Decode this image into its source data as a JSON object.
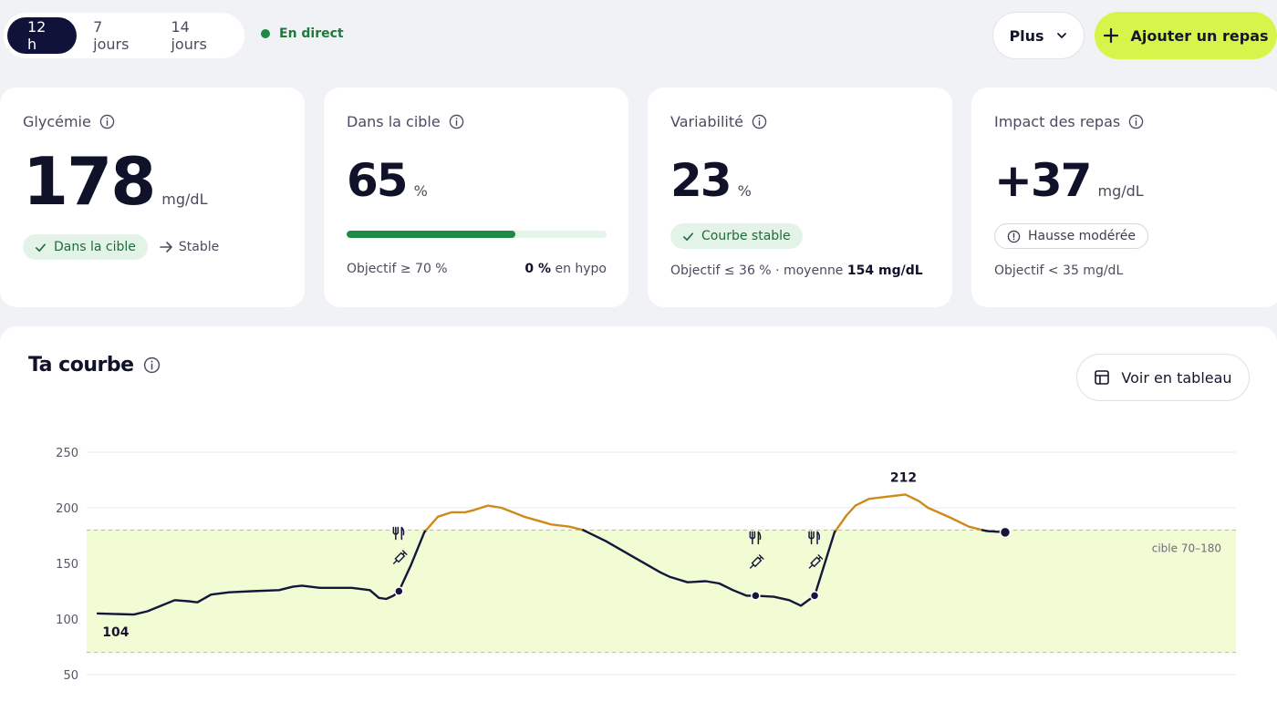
{
  "range_tabs": [
    {
      "label": "12 h",
      "active": true
    },
    {
      "label": "7 jours",
      "active": false
    },
    {
      "label": "14 jours",
      "active": false
    }
  ],
  "live_label": "En direct",
  "actions": {
    "more_label": "Plus",
    "add_meal_label": "Ajouter un repas"
  },
  "cards": {
    "glycemia": {
      "title": "Glycémie",
      "value": "178",
      "unit": "mg/dL",
      "status": "Dans la cible",
      "trend": "Stable"
    },
    "in_target": {
      "title": "Dans la cible",
      "value": "65",
      "unit": "%",
      "progress_percent": 65,
      "goal": "Objectif ≥ 70 %",
      "hypo_value": "0 %",
      "hypo_label": "en hypo"
    },
    "variability": {
      "title": "Variabilité",
      "value": "23",
      "unit": "%",
      "status": "Courbe stable",
      "goal": "Objectif ≤ 36 % · moyenne",
      "mean_value": "154 mg/dL"
    },
    "meal_impact": {
      "title": "Impact des repas",
      "value": "+37",
      "unit": "mg/dL",
      "status": "Hausse modérée",
      "goal": "Objectif < 35 mg/dL"
    }
  },
  "chart": {
    "title": "Ta courbe",
    "table_button_label": "Voir en tableau",
    "target_label": "cible 70–180",
    "min_label": "104",
    "max_label": "212"
  },
  "chart_data": {
    "type": "line",
    "yticks": [
      250,
      200,
      150,
      100,
      50
    ],
    "ylim": [
      50,
      250
    ],
    "xlim": [
      0,
      1
    ],
    "target_range": [
      70,
      180
    ],
    "colors": {
      "in_range": "#14163a",
      "high": "#d08a17",
      "target_fill": "#f1fbd4"
    },
    "points": [
      [
        0.0,
        105
      ],
      [
        0.04,
        104
      ],
      [
        0.055,
        107
      ],
      [
        0.07,
        112
      ],
      [
        0.085,
        117
      ],
      [
        0.1,
        116
      ],
      [
        0.11,
        115
      ],
      [
        0.125,
        122
      ],
      [
        0.145,
        124
      ],
      [
        0.17,
        125
      ],
      [
        0.2,
        126
      ],
      [
        0.215,
        129
      ],
      [
        0.225,
        130
      ],
      [
        0.245,
        128
      ],
      [
        0.28,
        128
      ],
      [
        0.3,
        126
      ],
      [
        0.31,
        119
      ],
      [
        0.318,
        118
      ],
      [
        0.326,
        121
      ],
      [
        0.332,
        125
      ],
      [
        0.345,
        148
      ],
      [
        0.36,
        178
      ],
      [
        0.375,
        192
      ],
      [
        0.39,
        196
      ],
      [
        0.405,
        196
      ],
      [
        0.415,
        198
      ],
      [
        0.43,
        202
      ],
      [
        0.445,
        200
      ],
      [
        0.47,
        192
      ],
      [
        0.5,
        185
      ],
      [
        0.52,
        183
      ],
      [
        0.535,
        180
      ],
      [
        0.56,
        170
      ],
      [
        0.59,
        156
      ],
      [
        0.62,
        142
      ],
      [
        0.63,
        138
      ],
      [
        0.65,
        133
      ],
      [
        0.67,
        134
      ],
      [
        0.685,
        132
      ],
      [
        0.7,
        126
      ],
      [
        0.715,
        121
      ],
      [
        0.725,
        121
      ],
      [
        0.745,
        120
      ],
      [
        0.762,
        117
      ],
      [
        0.775,
        112
      ],
      [
        0.79,
        121
      ],
      [
        0.812,
        178
      ],
      [
        0.825,
        193
      ],
      [
        0.835,
        202
      ],
      [
        0.85,
        208
      ],
      [
        0.87,
        210
      ],
      [
        0.89,
        212
      ],
      [
        0.905,
        206
      ],
      [
        0.915,
        200
      ],
      [
        0.94,
        191
      ],
      [
        0.96,
        183
      ],
      [
        0.98,
        179
      ],
      [
        1.0,
        178
      ]
    ],
    "markers": [
      {
        "x": 0.332,
        "y": 125,
        "meal": true,
        "insulin": true
      },
      {
        "x": 0.725,
        "y": 121,
        "meal": true,
        "insulin": true
      },
      {
        "x": 0.79,
        "y": 121,
        "meal": true,
        "insulin": true
      },
      {
        "x": 1.0,
        "y": 178,
        "current": true
      }
    ],
    "labels": [
      {
        "x": 0.02,
        "y": 104,
        "text_key": "min_label"
      },
      {
        "x": 0.89,
        "y": 212,
        "text_key": "max_label"
      }
    ]
  }
}
